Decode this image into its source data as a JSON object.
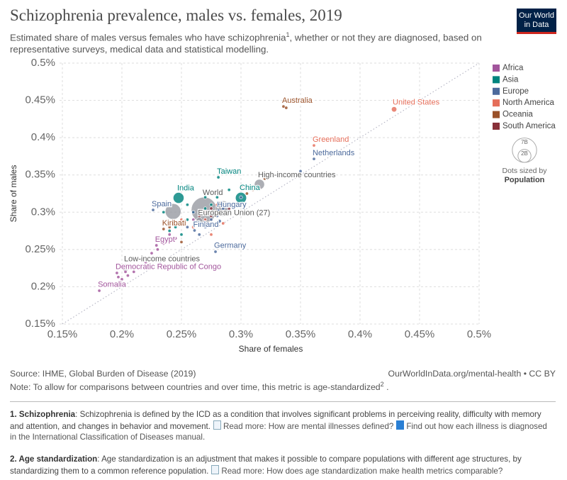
{
  "chart_data": {
    "type": "scatter",
    "title": "Schizophrenia prevalence, males vs. females, 2019",
    "subtitle": {
      "text": "Estimated share of males versus females who have schizophrenia",
      "sup": "1",
      "rest": ", whether or not they are diagnosed, based on representative surveys, medical data and statistical modelling."
    },
    "logo": [
      "Our World",
      "in Data"
    ],
    "x_label": "Share of females",
    "y_label": "Share of males",
    "xlim": [
      0.15,
      0.5
    ],
    "ylim": [
      0.15,
      0.5
    ],
    "xticks": [
      {
        "value": 0.15,
        "label": "0.15%"
      },
      {
        "value": 0.2,
        "label": "0.2%"
      },
      {
        "value": 0.25,
        "label": "0.25%"
      },
      {
        "value": 0.3,
        "label": "0.3%"
      },
      {
        "value": 0.35,
        "label": "0.35%"
      },
      {
        "value": 0.4,
        "label": "0.4%"
      },
      {
        "value": 0.45,
        "label": "0.45%"
      },
      {
        "value": 0.5,
        "label": "0.5%"
      }
    ],
    "yticks": [
      {
        "value": 0.15,
        "label": "0.15%"
      },
      {
        "value": 0.2,
        "label": "0.2%"
      },
      {
        "value": 0.25,
        "label": "0.25%"
      },
      {
        "value": 0.3,
        "label": "0.3%"
      },
      {
        "value": 0.35,
        "label": "0.35%"
      },
      {
        "value": 0.4,
        "label": "0.4%"
      },
      {
        "value": 0.45,
        "label": "0.45%"
      },
      {
        "value": 0.5,
        "label": "0.5%"
      }
    ],
    "grid": true,
    "diagonal": true,
    "legend": "right",
    "series": [
      {
        "name": "Africa",
        "color": "#a2559c",
        "x": [
          0.229,
          0.1958,
          0.181,
          0.19,
          0.2,
          0.205,
          0.21,
          0.215,
          0.22,
          0.225,
          0.23,
          0.235,
          0.24,
          0.245,
          0.197,
          0.203,
          0.232,
          0.26
        ],
        "y": [
          0.2555,
          0.2185,
          0.1947,
          0.205,
          0.21,
          0.215,
          0.22,
          0.225,
          0.233,
          0.245,
          0.25,
          0.258,
          0.27,
          0.265,
          0.213,
          0.22,
          0.262,
          0.29
        ],
        "size": [
          100,
          87,
          15,
          30,
          50,
          40,
          60,
          20,
          25,
          35,
          15,
          40,
          60,
          10,
          25,
          45,
          20,
          5
        ],
        "labels": [
          "Egypt",
          "Democratic Republic of Congo",
          "Somalia",
          null,
          null,
          null,
          null,
          null,
          null,
          null,
          null,
          null,
          null,
          null,
          null,
          null,
          null,
          null
        ]
      },
      {
        "name": "Asia",
        "color": "#00847e",
        "x": [
          0.2476,
          0.3,
          0.281,
          0.235,
          0.255,
          0.26,
          0.27,
          0.265,
          0.28,
          0.29,
          0.3,
          0.24,
          0.25,
          0.27,
          0.255,
          0.285,
          0.275,
          0.245
        ],
        "y": [
          0.3192,
          0.3192,
          0.3468,
          0.3,
          0.31,
          0.3,
          0.305,
          0.285,
          0.32,
          0.33,
          0.335,
          0.275,
          0.27,
          0.32,
          0.29,
          0.3,
          0.31,
          0.28
        ],
        "size": [
          1370,
          1430,
          24,
          30,
          100,
          50,
          30,
          270,
          10,
          15,
          5,
          20,
          30,
          60,
          80,
          125,
          50,
          10
        ],
        "labels": [
          "India",
          "China",
          "Taiwan",
          null,
          null,
          null,
          null,
          null,
          null,
          null,
          null,
          null,
          null,
          null,
          null,
          null,
          null,
          null
        ]
      },
      {
        "name": "Europe",
        "color": "#4c6a9c",
        "x": [
          0.3613,
          0.281,
          0.2262,
          0.261,
          0.2786,
          0.35,
          0.285,
          0.29,
          0.28,
          0.275,
          0.27,
          0.265,
          0.29,
          0.255,
          0.27,
          0.3,
          0.26,
          0.282
        ],
        "y": [
          0.3715,
          0.302,
          0.303,
          0.2755,
          0.247,
          0.355,
          0.305,
          0.3,
          0.295,
          0.29,
          0.28,
          0.27,
          0.31,
          0.28,
          0.29,
          0.32,
          0.3,
          0.288
        ],
        "size": [
          17,
          10,
          47,
          5.5,
          83,
          1,
          67,
          60,
          38,
          10,
          5,
          9,
          8,
          4,
          11,
          3,
          2,
          145
        ],
        "labels": [
          "Netherlands",
          "Hungary",
          "Spain",
          "Finland",
          "Germany",
          null,
          null,
          null,
          null,
          null,
          null,
          null,
          null,
          null,
          null,
          null,
          null,
          null
        ]
      },
      {
        "name": "North America",
        "color": "#e56e5a",
        "x": [
          0.4286,
          0.3613,
          0.31,
          0.26,
          0.27,
          0.28,
          0.25,
          0.265,
          0.285,
          0.275
        ],
        "y": [
          0.438,
          0.3895,
          0.33,
          0.28,
          0.29,
          0.31,
          0.29,
          0.3,
          0.285,
          0.27
        ],
        "size": [
          330,
          0.06,
          38,
          130,
          11,
          10,
          5,
          4,
          2,
          1
        ],
        "labels": [
          "United States",
          "Greenland",
          null,
          null,
          null,
          null,
          null,
          null,
          null,
          null
        ]
      },
      {
        "name": "Oceania",
        "color": "#9a5129",
        "x": [
          0.3357,
          0.235,
          0.338,
          0.31,
          0.305,
          0.24,
          0.32,
          0.25
        ],
        "y": [
          0.4418,
          0.2774,
          0.44,
          0.33,
          0.325,
          0.28,
          0.345,
          0.26
        ],
        "size": [
          25,
          0.12,
          5,
          1,
          0.9,
          0.3,
          0.5,
          9
        ],
        "labels": [
          "Australia",
          "Kiribati",
          null,
          null,
          null,
          null,
          null,
          null
        ]
      },
      {
        "name": "South America",
        "color": "#883039",
        "x": [
          0.27,
          0.275,
          0.28,
          0.265,
          0.285,
          0.27,
          0.29,
          0.28,
          0.275,
          0.3
        ],
        "y": [
          0.3,
          0.305,
          0.31,
          0.295,
          0.3,
          0.29,
          0.305,
          0.285,
          0.295,
          0.335
        ],
        "size": [
          210,
          45,
          50,
          33,
          32,
          19,
          11,
          7,
          18,
          3.5
        ],
        "labels": [
          null,
          null,
          null,
          null,
          null,
          null,
          null,
          null,
          null,
          null
        ]
      }
    ],
    "aggregates": {
      "color": "#9a9ca3",
      "x": [
        0.269,
        0.3155,
        0.265,
        0.203,
        0.243,
        0.285
      ],
      "y": [
        0.303,
        0.3373,
        0.2888,
        0.226,
        0.301,
        0.305
      ],
      "size": [
        7700,
        1200,
        447,
        660,
        2900,
        2800
      ],
      "labels": [
        "World",
        "High-income countries",
        "European Union (27)",
        "Low-income countries",
        null,
        null
      ]
    },
    "size_legend": {
      "values": [
        {
          "value": 7000,
          "label": "7B"
        },
        {
          "value": 2000,
          "label": "2B"
        }
      ],
      "note": "Dots sized by",
      "variable": "Population"
    },
    "source": "Source: IHME, Global Burden of Disease (2019)",
    "url": "OurWorldInData.org/mental-health • CC BY",
    "note": {
      "text": "Note: To allow for comparisons between countries and over time, this metric is age-standardized",
      "sup": "2",
      "rest": " ."
    },
    "footnotes": [
      {
        "term": "1. Schizophrenia",
        "text": ": Schizophrenia is defined by the ICD as a condition that involves significant problems in perceiving reality, difficulty with memory and attention, and changes in behavior and movement.",
        "link1": "Read more: How are mental illnesses defined?",
        "link2": "Find out how each illness is diagnosed in the International Classification of Diseases manual."
      },
      {
        "term": "2. Age standardization",
        "text": ": Age standardization is an adjustment that makes it possible to compare populations with different age structures, by standardizing them to a common reference population.",
        "link1": "Read more: How does age standardization make health metrics comparable?"
      }
    ]
  }
}
